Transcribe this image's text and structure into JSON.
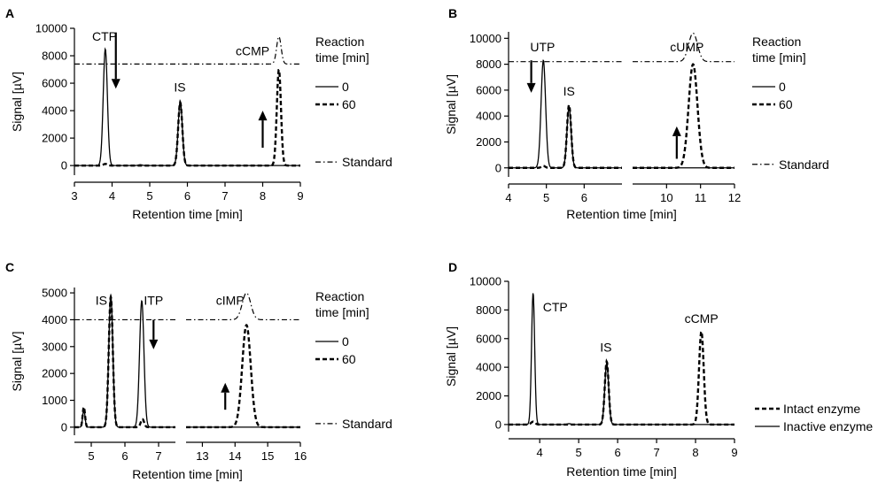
{
  "chart_data": [
    {
      "panel": "A",
      "type": "line",
      "xlabel": "Retention time [min]",
      "ylabel": "Signal [µV]",
      "xlim": [
        3,
        9
      ],
      "ylim": [
        -700,
        10000
      ],
      "xticks": [
        "3",
        "4",
        "5",
        "6",
        "7",
        "8",
        "9"
      ],
      "yticks": [
        "0",
        "2000",
        "4000",
        "6000",
        "8000",
        "10000"
      ],
      "legend_title": [
        "Reaction",
        "time [min]"
      ],
      "legend": [
        {
          "label": "0",
          "style": "solid"
        },
        {
          "label": "60",
          "style": "dashed"
        },
        {
          "label": "Standard",
          "style": "dashdot"
        }
      ],
      "peak_labels": [
        {
          "text": "CTP",
          "x": 3.8,
          "y": 9100
        },
        {
          "text": "IS",
          "x": 5.8,
          "y": 5400
        },
        {
          "text": "cCMP",
          "x": 7.73,
          "y": 8050
        }
      ],
      "arrows": [
        {
          "x": 4.1,
          "from": 9700,
          "to": 5600
        },
        {
          "x": 8.0,
          "from": 1300,
          "to": 4000
        }
      ],
      "series": [
        {
          "name": "0",
          "style": "solid",
          "peaks": [
            {
              "center": 3.82,
              "height": 8500,
              "width": 0.055
            },
            {
              "center": 5.81,
              "height": 4700,
              "width": 0.055
            },
            {
              "center": 4.75,
              "height": 60,
              "width": 0.05
            }
          ]
        },
        {
          "name": "60",
          "style": "dashed",
          "peaks": [
            {
              "center": 5.81,
              "height": 4600,
              "width": 0.055
            },
            {
              "center": 8.43,
              "height": 7000,
              "width": 0.055
            },
            {
              "center": 3.82,
              "height": 120,
              "width": 0.05
            }
          ]
        },
        {
          "name": "Standard",
          "style": "dashdot",
          "baseline": 7400,
          "peaks": [
            {
              "center": 8.43,
              "height": 2000,
              "width": 0.06
            }
          ]
        }
      ]
    },
    {
      "panel": "B",
      "type": "line",
      "xlabel": "Retention time [min]",
      "ylabel": "Signal [µV]",
      "broken_axis": true,
      "segments": [
        {
          "xlim": [
            4,
            7
          ],
          "xticks": [
            "4",
            "5",
            "6"
          ]
        },
        {
          "xlim": [
            9,
            12
          ],
          "xticks": [
            "10",
            "11",
            "12"
          ]
        }
      ],
      "ylim": [
        -700,
        10500
      ],
      "yticks": [
        "0",
        "2000",
        "4000",
        "6000",
        "8000",
        "10000"
      ],
      "legend_title": [
        "Reaction",
        "time [min]"
      ],
      "legend": [
        {
          "label": "0",
          "style": "solid"
        },
        {
          "label": "60",
          "style": "dashed"
        },
        {
          "label": "Standard",
          "style": "dashdot"
        }
      ],
      "peak_labels": [
        {
          "text": "UTP",
          "x": 4.9,
          "y": 9000
        },
        {
          "text": "IS",
          "x": 5.6,
          "y": 5600
        },
        {
          "text": "cUMP",
          "x": 10.6,
          "y": 9000
        }
      ],
      "arrows": [
        {
          "x": 4.6,
          "from": 8300,
          "to": 5800
        },
        {
          "x": 10.3,
          "from": 700,
          "to": 3200
        }
      ],
      "series": [
        {
          "name": "0",
          "style": "solid",
          "peaks": [
            {
              "center": 4.92,
              "height": 8300,
              "width": 0.06
            },
            {
              "center": 5.6,
              "height": 4700,
              "width": 0.055
            }
          ]
        },
        {
          "name": "60",
          "style": "dashed",
          "peaks": [
            {
              "center": 5.6,
              "height": 4850,
              "width": 0.055
            },
            {
              "center": 10.78,
              "height": 8000,
              "width": 0.13
            },
            {
              "center": 4.92,
              "height": 150,
              "width": 0.05
            }
          ]
        },
        {
          "name": "Standard",
          "style": "dashdot",
          "baseline": 8200,
          "peaks": [
            {
              "center": 10.78,
              "height": 2200,
              "width": 0.13
            }
          ]
        }
      ]
    },
    {
      "panel": "C",
      "type": "line",
      "xlabel": "Retention time [min]",
      "ylabel": "Signal [µV]",
      "broken_axis": true,
      "segments": [
        {
          "xlim": [
            4.5,
            7.5
          ],
          "xticks": [
            "5",
            "6",
            "7"
          ]
        },
        {
          "xlim": [
            12.5,
            16
          ],
          "xticks": [
            "13",
            "14",
            "15",
            "16"
          ]
        }
      ],
      "ylim": [
        -300,
        5200
      ],
      "yticks": [
        "0",
        "1000",
        "2000",
        "3000",
        "4000",
        "5000"
      ],
      "legend_title": [
        "Reaction",
        "time [min]"
      ],
      "legend": [
        {
          "label": "0",
          "style": "solid"
        },
        {
          "label": "60",
          "style": "dashed"
        },
        {
          "label": "Standard",
          "style": "dashdot"
        }
      ],
      "peak_labels": [
        {
          "text": "IS",
          "x": 5.3,
          "y": 4550
        },
        {
          "text": "ITP",
          "x": 6.85,
          "y": 4550
        },
        {
          "text": "cIMP",
          "x": 13.85,
          "y": 4550
        }
      ],
      "arrows": [
        {
          "x": 6.85,
          "from": 4000,
          "to": 2900
        },
        {
          "x": 13.7,
          "from": 650,
          "to": 1650
        }
      ],
      "series": [
        {
          "name": "0",
          "style": "solid",
          "peaks": [
            {
              "center": 4.78,
              "height": 650,
              "width": 0.035
            },
            {
              "center": 5.58,
              "height": 4900,
              "width": 0.06
            },
            {
              "center": 6.5,
              "height": 4700,
              "width": 0.065
            }
          ]
        },
        {
          "name": "60",
          "style": "dashed",
          "peaks": [
            {
              "center": 4.78,
              "height": 750,
              "width": 0.035
            },
            {
              "center": 5.58,
              "height": 4850,
              "width": 0.06
            },
            {
              "center": 6.52,
              "height": 300,
              "width": 0.05
            },
            {
              "center": 14.35,
              "height": 3800,
              "width": 0.13
            }
          ]
        },
        {
          "name": "Standard",
          "style": "dashdot",
          "baseline": 4000,
          "peaks": [
            {
              "center": 14.35,
              "height": 1000,
              "width": 0.13
            }
          ]
        }
      ]
    },
    {
      "panel": "D",
      "type": "line",
      "xlabel": "Retention time [min]",
      "ylabel": "Signal [µV]",
      "xlim": [
        3.2,
        9
      ],
      "ylim": [
        -500,
        10000
      ],
      "xticks": [
        "4",
        "5",
        "6",
        "7",
        "8",
        "9"
      ],
      "yticks": [
        "0",
        "2000",
        "4000",
        "6000",
        "8000",
        "10000"
      ],
      "legend": [
        {
          "label": "Intact enzyme",
          "style": "dashed"
        },
        {
          "label": "Inactive enzyme",
          "style": "solid"
        }
      ],
      "peak_labels": [
        {
          "text": "CTP",
          "x": 4.4,
          "y": 7900
        },
        {
          "text": "IS",
          "x": 5.7,
          "y": 5100
        },
        {
          "text": "cCMP",
          "x": 8.15,
          "y": 7100
        }
      ],
      "arrows": [],
      "series": [
        {
          "name": "Intact enzyme",
          "style": "dashed",
          "peaks": [
            {
              "center": 5.72,
              "height": 4400,
              "width": 0.05
            },
            {
              "center": 8.15,
              "height": 6500,
              "width": 0.06
            },
            {
              "center": 3.83,
              "height": 200,
              "width": 0.05
            }
          ]
        },
        {
          "name": "Inactive enzyme",
          "style": "solid",
          "peaks": [
            {
              "center": 3.83,
              "height": 9200,
              "width": 0.04
            },
            {
              "center": 5.72,
              "height": 4300,
              "width": 0.05
            },
            {
              "center": 4.75,
              "height": 60,
              "width": 0.05
            }
          ]
        }
      ]
    }
  ]
}
